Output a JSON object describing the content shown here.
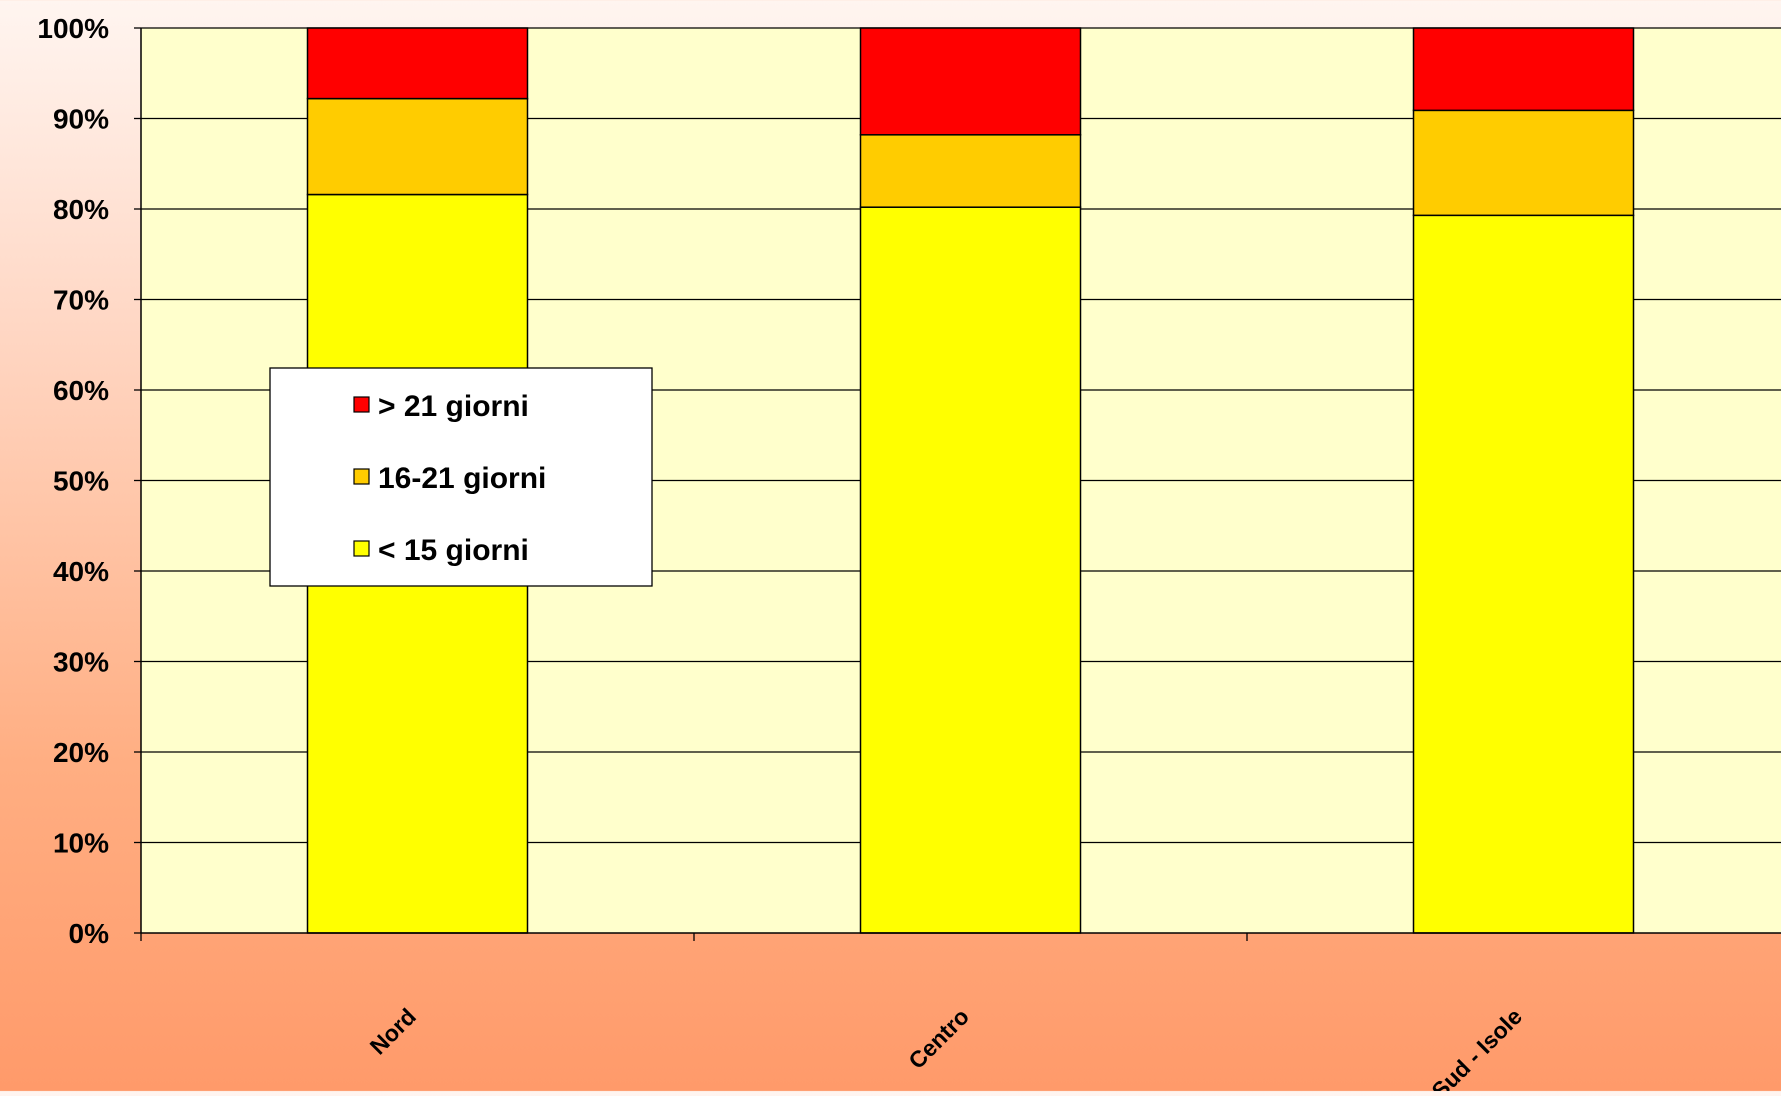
{
  "chart_data": {
    "type": "bar",
    "stacked": true,
    "title": "",
    "xlabel": "",
    "ylabel": "",
    "categories": [
      "Nord",
      "Centro",
      "Sud - Isole"
    ],
    "series": [
      {
        "name": "< 15 giorni",
        "color": "#ffff00",
        "values": [
          81.6,
          80.2,
          79.3
        ]
      },
      {
        "name": "16-21 giorni",
        "color": "#ffcc00",
        "values": [
          10.6,
          8.0,
          11.6
        ]
      },
      {
        "name": "> 21 giorni",
        "color": "#ff0000",
        "values": [
          7.8,
          11.8,
          9.1
        ]
      }
    ],
    "ylim": [
      0,
      100
    ],
    "yticks": [
      "0%",
      "10%",
      "20%",
      "30%",
      "40%",
      "50%",
      "60%",
      "70%",
      "80%",
      "90%",
      "100%"
    ],
    "grid": true,
    "plot_background": "#ffffcc",
    "legend": {
      "placement": "left-center",
      "order": [
        "> 21 giorni",
        "16-21 giorni",
        "< 15 giorni"
      ]
    }
  }
}
